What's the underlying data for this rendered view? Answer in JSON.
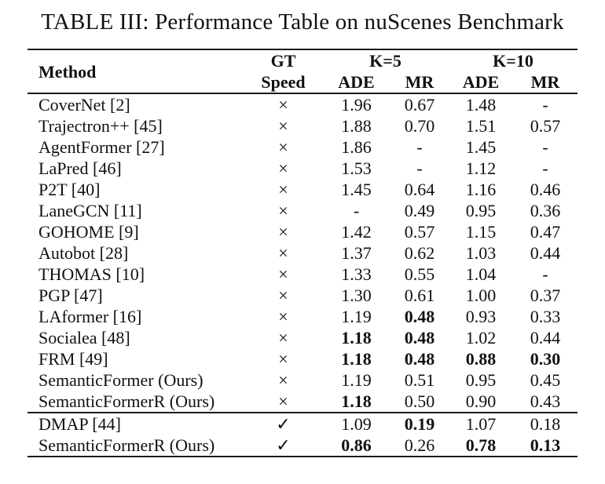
{
  "title": "TABLE III: Performance Table on nuScenes Benchmark",
  "colors": {
    "background": "#ffffff",
    "text": "#111111",
    "rule": "#1a1a1a"
  },
  "icons": {
    "no_gt_speed": "cross-x",
    "has_gt_speed": "checkmark"
  },
  "table": {
    "header": {
      "method": "Method",
      "gt_line1": "GT",
      "gt_line2": "Speed",
      "k5": "K=5",
      "k10": "K=10",
      "k5_ade": "ADE",
      "k5_mr": "MR",
      "k10_ade": "ADE",
      "k10_mr": "MR"
    },
    "groups": [
      {
        "rows": [
          {
            "method": "CoverNet [2]",
            "gt": "×",
            "k5_ade": "1.96",
            "k5_ade_w": "normal",
            "k5_mr": "0.67",
            "k5_mr_w": "normal",
            "k10_ade": "1.48",
            "k10_ade_w": "normal",
            "k10_mr": "-",
            "k10_mr_w": "normal"
          },
          {
            "method": "Trajectron++ [45]",
            "gt": "×",
            "k5_ade": "1.88",
            "k5_ade_w": "normal",
            "k5_mr": "0.70",
            "k5_mr_w": "normal",
            "k10_ade": "1.51",
            "k10_ade_w": "normal",
            "k10_mr": "0.57",
            "k10_mr_w": "normal"
          },
          {
            "method": "AgentFormer [27]",
            "gt": "×",
            "k5_ade": "1.86",
            "k5_ade_w": "normal",
            "k5_mr": "-",
            "k5_mr_w": "normal",
            "k10_ade": "1.45",
            "k10_ade_w": "normal",
            "k10_mr": "-",
            "k10_mr_w": "normal"
          },
          {
            "method": "LaPred [46]",
            "gt": "×",
            "k5_ade": "1.53",
            "k5_ade_w": "normal",
            "k5_mr": "-",
            "k5_mr_w": "normal",
            "k10_ade": "1.12",
            "k10_ade_w": "normal",
            "k10_mr": "-",
            "k10_mr_w": "normal"
          },
          {
            "method": "P2T [40]",
            "gt": "×",
            "k5_ade": "1.45",
            "k5_ade_w": "normal",
            "k5_mr": "0.64",
            "k5_mr_w": "normal",
            "k10_ade": "1.16",
            "k10_ade_w": "normal",
            "k10_mr": "0.46",
            "k10_mr_w": "normal"
          },
          {
            "method": "LaneGCN [11]",
            "gt": "×",
            "k5_ade": "-",
            "k5_ade_w": "normal",
            "k5_mr": "0.49",
            "k5_mr_w": "normal",
            "k10_ade": "0.95",
            "k10_ade_w": "normal",
            "k10_mr": "0.36",
            "k10_mr_w": "normal"
          },
          {
            "method": "GOHOME [9]",
            "gt": "×",
            "k5_ade": "1.42",
            "k5_ade_w": "normal",
            "k5_mr": "0.57",
            "k5_mr_w": "normal",
            "k10_ade": "1.15",
            "k10_ade_w": "normal",
            "k10_mr": "0.47",
            "k10_mr_w": "normal"
          },
          {
            "method": "Autobot [28]",
            "gt": "×",
            "k5_ade": "1.37",
            "k5_ade_w": "normal",
            "k5_mr": "0.62",
            "k5_mr_w": "normal",
            "k10_ade": "1.03",
            "k10_ade_w": "normal",
            "k10_mr": "0.44",
            "k10_mr_w": "normal"
          },
          {
            "method": "THOMAS [10]",
            "gt": "×",
            "k5_ade": "1.33",
            "k5_ade_w": "normal",
            "k5_mr": "0.55",
            "k5_mr_w": "normal",
            "k10_ade": "1.04",
            "k10_ade_w": "normal",
            "k10_mr": "-",
            "k10_mr_w": "normal"
          },
          {
            "method": "PGP [47]",
            "gt": "×",
            "k5_ade": "1.30",
            "k5_ade_w": "normal",
            "k5_mr": "0.61",
            "k5_mr_w": "normal",
            "k10_ade": "1.00",
            "k10_ade_w": "normal",
            "k10_mr": "0.37",
            "k10_mr_w": "normal"
          },
          {
            "method": "LAformer [16]",
            "gt": "×",
            "k5_ade": "1.19",
            "k5_ade_w": "normal",
            "k5_mr": "0.48",
            "k5_mr_w": "bold",
            "k10_ade": "0.93",
            "k10_ade_w": "normal",
            "k10_mr": "0.33",
            "k10_mr_w": "normal"
          },
          {
            "method": "Socialea [48]",
            "gt": "×",
            "k5_ade": "1.18",
            "k5_ade_w": "bold",
            "k5_mr": "0.48",
            "k5_mr_w": "bold",
            "k10_ade": "1.02",
            "k10_ade_w": "normal",
            "k10_mr": "0.44",
            "k10_mr_w": "normal"
          },
          {
            "method": "FRM [49]",
            "gt": "×",
            "k5_ade": "1.18",
            "k5_ade_w": "bold",
            "k5_mr": "0.48",
            "k5_mr_w": "bold",
            "k10_ade": "0.88",
            "k10_ade_w": "bold",
            "k10_mr": "0.30",
            "k10_mr_w": "bold"
          },
          {
            "method": "SemanticFormer (Ours)",
            "gt": "×",
            "k5_ade": "1.19",
            "k5_ade_w": "normal",
            "k5_mr": "0.51",
            "k5_mr_w": "normal",
            "k10_ade": "0.95",
            "k10_ade_w": "normal",
            "k10_mr": "0.45",
            "k10_mr_w": "normal"
          },
          {
            "method": "SemanticFormerR (Ours)",
            "gt": "×",
            "k5_ade": "1.18",
            "k5_ade_w": "bold",
            "k5_mr": "0.50",
            "k5_mr_w": "normal",
            "k10_ade": "0.90",
            "k10_ade_w": "normal",
            "k10_mr": "0.43",
            "k10_mr_w": "normal"
          }
        ]
      },
      {
        "rows": [
          {
            "method": "DMAP [44]",
            "gt": "✓",
            "k5_ade": "1.09",
            "k5_ade_w": "normal",
            "k5_mr": "0.19",
            "k5_mr_w": "bold",
            "k10_ade": "1.07",
            "k10_ade_w": "normal",
            "k10_mr": "0.18",
            "k10_mr_w": "normal"
          },
          {
            "method": "SemanticFormerR (Ours)",
            "gt": "✓",
            "k5_ade": "0.86",
            "k5_ade_w": "bold",
            "k5_mr": "0.26",
            "k5_mr_w": "normal",
            "k10_ade": "0.78",
            "k10_ade_w": "bold",
            "k10_mr": "0.13",
            "k10_mr_w": "bold"
          }
        ]
      }
    ]
  }
}
